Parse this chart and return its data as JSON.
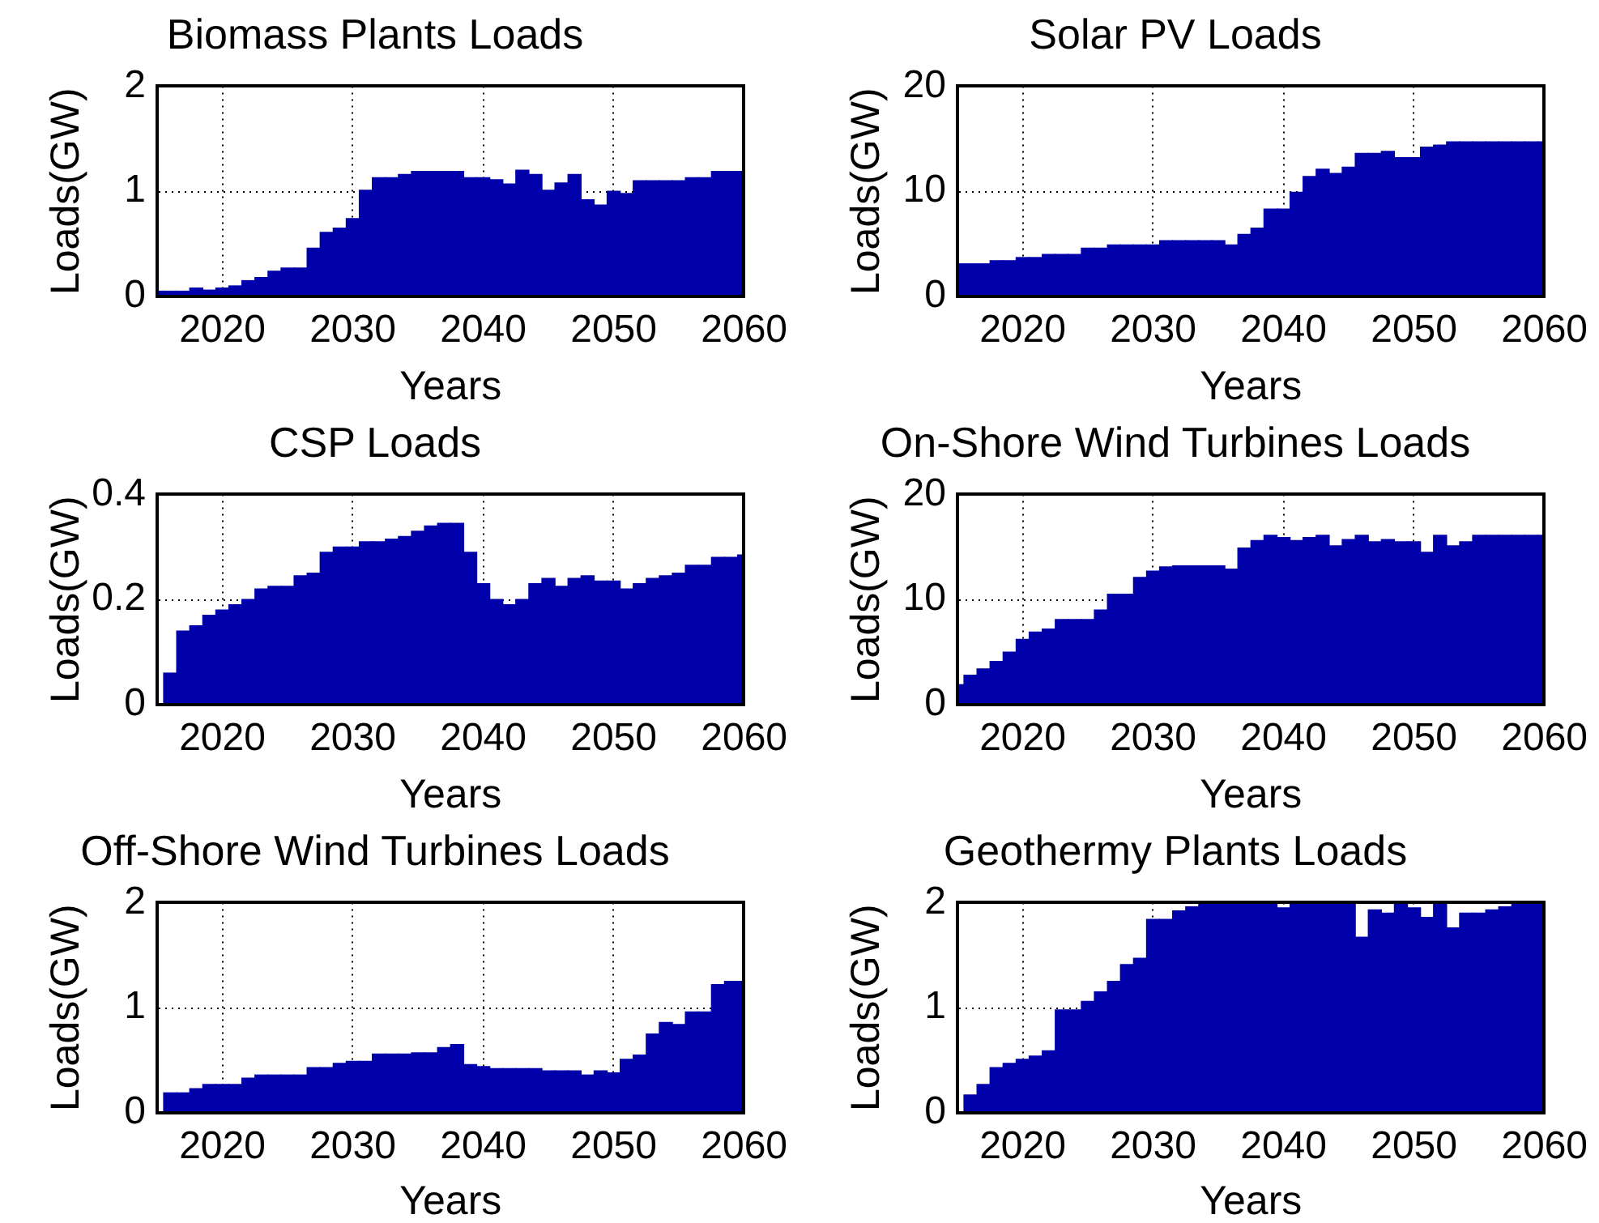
{
  "chart_data": [
    {
      "type": "bar",
      "title": "Biomass Plants Loads",
      "xlabel": "Years",
      "ylabel": "Loads(GW)",
      "color": "#0000aa",
      "grid": true,
      "xlim": [
        2015,
        2060
      ],
      "xticks": [
        2020,
        2030,
        2040,
        2050,
        2060
      ],
      "ylim": [
        0,
        2
      ],
      "yticks": [
        0,
        1,
        2
      ],
      "x": [
        2015,
        2016,
        2017,
        2018,
        2019,
        2020,
        2021,
        2022,
        2023,
        2024,
        2025,
        2026,
        2027,
        2028,
        2029,
        2030,
        2031,
        2032,
        2033,
        2034,
        2035,
        2036,
        2037,
        2038,
        2039,
        2040,
        2041,
        2042,
        2043,
        2044,
        2045,
        2046,
        2047,
        2048,
        2049,
        2050,
        2051,
        2052,
        2053,
        2054,
        2055,
        2056,
        2057,
        2058,
        2059,
        2060
      ],
      "values": [
        0.05,
        0.05,
        0.05,
        0.08,
        0.06,
        0.08,
        0.1,
        0.15,
        0.18,
        0.24,
        0.27,
        0.27,
        0.46,
        0.61,
        0.65,
        0.74,
        1.01,
        1.13,
        1.13,
        1.16,
        1.19,
        1.19,
        1.19,
        1.19,
        1.13,
        1.13,
        1.11,
        1.07,
        1.2,
        1.16,
        1.01,
        1.08,
        1.16,
        0.92,
        0.87,
        1.0,
        0.98,
        1.1,
        1.1,
        1.1,
        1.1,
        1.13,
        1.13,
        1.19,
        1.19,
        1.19
      ]
    },
    {
      "type": "bar",
      "title": "Solar PV Loads",
      "xlabel": "Years",
      "ylabel": "Loads(GW)",
      "color": "#0000aa",
      "grid": true,
      "xlim": [
        2015,
        2060
      ],
      "xticks": [
        2020,
        2030,
        2040,
        2050,
        2060
      ],
      "ylim": [
        0,
        20
      ],
      "yticks": [
        0,
        10,
        20
      ],
      "x": [
        2015,
        2016,
        2017,
        2018,
        2019,
        2020,
        2021,
        2022,
        2023,
        2024,
        2025,
        2026,
        2027,
        2028,
        2029,
        2030,
        2031,
        2032,
        2033,
        2034,
        2035,
        2036,
        2037,
        2038,
        2039,
        2040,
        2041,
        2042,
        2043,
        2044,
        2045,
        2046,
        2047,
        2048,
        2049,
        2050,
        2051,
        2052,
        2053,
        2054,
        2055,
        2056,
        2057,
        2058,
        2059,
        2060
      ],
      "values": [
        3.1,
        3.1,
        3.1,
        3.4,
        3.4,
        3.7,
        3.7,
        4.0,
        4.0,
        4.0,
        4.6,
        4.6,
        4.9,
        4.9,
        4.9,
        4.9,
        5.3,
        5.3,
        5.3,
        5.3,
        5.3,
        4.9,
        5.9,
        6.5,
        8.3,
        8.3,
        9.9,
        11.4,
        12.1,
        11.7,
        12.3,
        13.6,
        13.6,
        13.8,
        13.2,
        13.2,
        14.2,
        14.4,
        14.7,
        14.7,
        14.7,
        14.7,
        14.7,
        14.7,
        14.7,
        14.7
      ]
    },
    {
      "type": "bar",
      "title": "CSP Loads",
      "xlabel": "Years",
      "ylabel": "Loads(GW)",
      "color": "#0000aa",
      "grid": true,
      "xlim": [
        2015,
        2060
      ],
      "xticks": [
        2020,
        2030,
        2040,
        2050,
        2060
      ],
      "ylim": [
        0,
        0.4
      ],
      "yticks": [
        0,
        0.2,
        0.4
      ],
      "x": [
        2016,
        2017,
        2018,
        2019,
        2020,
        2021,
        2022,
        2023,
        2024,
        2025,
        2026,
        2027,
        2028,
        2029,
        2030,
        2031,
        2032,
        2033,
        2034,
        2035,
        2036,
        2037,
        2038,
        2039,
        2040,
        2041,
        2042,
        2043,
        2044,
        2045,
        2046,
        2047,
        2048,
        2049,
        2050,
        2051,
        2052,
        2053,
        2054,
        2055,
        2056,
        2057,
        2058,
        2059,
        2060
      ],
      "values": [
        0.06,
        0.14,
        0.15,
        0.17,
        0.18,
        0.19,
        0.2,
        0.22,
        0.225,
        0.225,
        0.245,
        0.25,
        0.29,
        0.3,
        0.3,
        0.31,
        0.31,
        0.315,
        0.32,
        0.33,
        0.34,
        0.345,
        0.345,
        0.29,
        0.23,
        0.2,
        0.19,
        0.2,
        0.23,
        0.24,
        0.225,
        0.24,
        0.245,
        0.235,
        0.235,
        0.22,
        0.23,
        0.24,
        0.245,
        0.25,
        0.265,
        0.265,
        0.28,
        0.28,
        0.285
      ]
    },
    {
      "type": "bar",
      "title": "On-Shore Wind Turbines Loads",
      "xlabel": "Years",
      "ylabel": "Loads(GW)",
      "color": "#0000aa",
      "grid": true,
      "xlim": [
        2015,
        2060
      ],
      "xticks": [
        2020,
        2030,
        2040,
        2050,
        2060
      ],
      "ylim": [
        0,
        20
      ],
      "yticks": [
        0,
        10,
        20
      ],
      "x": [
        2015,
        2016,
        2017,
        2018,
        2019,
        2020,
        2021,
        2022,
        2023,
        2024,
        2025,
        2026,
        2027,
        2028,
        2029,
        2030,
        2031,
        2032,
        2033,
        2034,
        2035,
        2036,
        2037,
        2038,
        2039,
        2040,
        2041,
        2042,
        2043,
        2044,
        2045,
        2046,
        2047,
        2048,
        2049,
        2050,
        2051,
        2052,
        2053,
        2054,
        2055,
        2056,
        2057,
        2058,
        2059,
        2060
      ],
      "values": [
        1.9,
        2.8,
        3.4,
        4.1,
        5.0,
        6.2,
        6.9,
        7.2,
        8.1,
        8.1,
        8.1,
        9.0,
        10.5,
        10.5,
        12.1,
        12.7,
        13.1,
        13.2,
        13.2,
        13.2,
        13.2,
        12.9,
        14.9,
        15.6,
        16.1,
        15.9,
        15.6,
        15.9,
        16.1,
        15.1,
        15.7,
        16.1,
        15.5,
        15.7,
        15.5,
        15.5,
        14.5,
        16.1,
        15.1,
        15.5,
        16.1,
        16.1,
        16.1,
        16.1,
        16.1,
        16.1
      ]
    },
    {
      "type": "bar",
      "title": "Off-Shore Wind Turbines Loads",
      "xlabel": "Years",
      "ylabel": "Loads(GW)",
      "color": "#0000aa",
      "grid": true,
      "xlim": [
        2015,
        2060
      ],
      "xticks": [
        2020,
        2030,
        2040,
        2050,
        2060
      ],
      "ylim": [
        0,
        2
      ],
      "yticks": [
        0,
        1,
        2
      ],
      "x": [
        2016,
        2017,
        2018,
        2019,
        2020,
        2021,
        2022,
        2023,
        2024,
        2025,
        2026,
        2027,
        2028,
        2029,
        2030,
        2031,
        2032,
        2033,
        2034,
        2035,
        2036,
        2037,
        2038,
        2039,
        2040,
        2041,
        2042,
        2043,
        2044,
        2045,
        2046,
        2047,
        2048,
        2049,
        2050,
        2051,
        2052,
        2053,
        2054,
        2055,
        2056,
        2057,
        2058,
        2059,
        2060
      ],
      "values": [
        0.19,
        0.19,
        0.23,
        0.27,
        0.27,
        0.27,
        0.33,
        0.36,
        0.36,
        0.36,
        0.36,
        0.43,
        0.43,
        0.47,
        0.49,
        0.49,
        0.56,
        0.56,
        0.56,
        0.57,
        0.57,
        0.62,
        0.65,
        0.46,
        0.44,
        0.42,
        0.42,
        0.42,
        0.42,
        0.4,
        0.4,
        0.4,
        0.36,
        0.4,
        0.38,
        0.51,
        0.55,
        0.75,
        0.86,
        0.84,
        0.96,
        0.96,
        1.22,
        1.25,
        1.25
      ]
    },
    {
      "type": "bar",
      "title": "Geothermy Plants Loads",
      "xlabel": "Years",
      "ylabel": "Loads(GW)",
      "color": "#0000aa",
      "grid": true,
      "xlim": [
        2015,
        2060
      ],
      "xticks": [
        2020,
        2030,
        2040,
        2050,
        2060
      ],
      "ylim": [
        0,
        2
      ],
      "yticks": [
        0,
        1,
        2
      ],
      "x": [
        2016,
        2017,
        2018,
        2019,
        2020,
        2021,
        2022,
        2023,
        2024,
        2025,
        2026,
        2027,
        2028,
        2029,
        2030,
        2031,
        2032,
        2033,
        2034,
        2035,
        2036,
        2037,
        2038,
        2039,
        2040,
        2041,
        2042,
        2043,
        2044,
        2045,
        2046,
        2047,
        2048,
        2049,
        2050,
        2051,
        2052,
        2053,
        2054,
        2055,
        2056,
        2057,
        2058,
        2059,
        2060
      ],
      "values": [
        0.17,
        0.27,
        0.43,
        0.47,
        0.51,
        0.54,
        0.59,
        0.98,
        0.98,
        1.06,
        1.15,
        1.25,
        1.41,
        1.47,
        1.84,
        1.84,
        1.92,
        1.96,
        2,
        2,
        2,
        2,
        2,
        2,
        1.95,
        2,
        2,
        2,
        2,
        2,
        1.67,
        1.93,
        1.9,
        2,
        1.95,
        1.86,
        2,
        1.76,
        1.9,
        1.9,
        1.93,
        1.96,
        2,
        2,
        2
      ]
    }
  ]
}
